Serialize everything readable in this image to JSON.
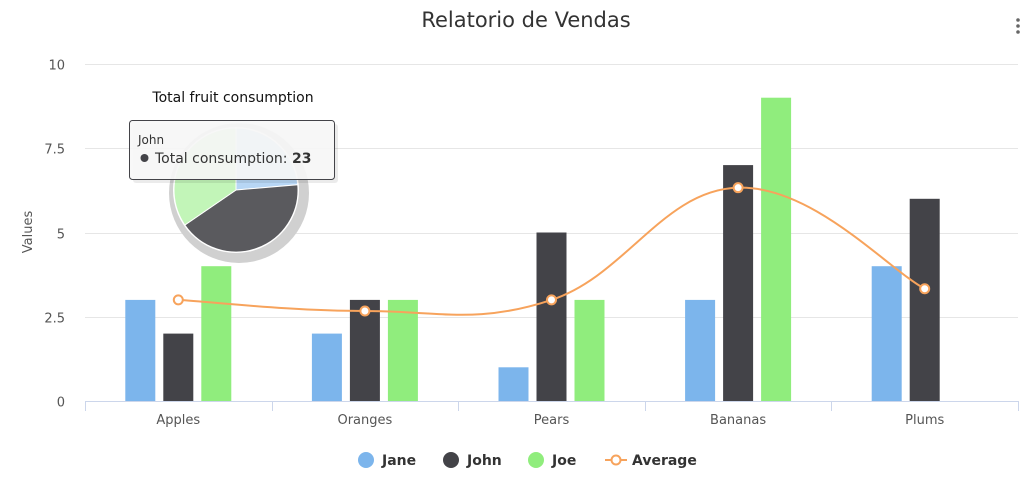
{
  "context_menu_icon": "vertical-ellipsis-icon",
  "chart_data": {
    "type": "bar",
    "title": "Relatorio de Vendas",
    "ylabel": "Values",
    "xlabel": "",
    "ylim": [
      0,
      10
    ],
    "yticks": [
      0,
      2.5,
      5,
      7.5,
      10
    ],
    "ytick_labels": [
      "0",
      "2.5",
      "5",
      "7.5",
      "10"
    ],
    "grid": true,
    "legend_position": "bottom",
    "categories": [
      "Apples",
      "Oranges",
      "Pears",
      "Bananas",
      "Plums"
    ],
    "series": [
      {
        "name": "Jane",
        "type": "bar",
        "color": "#7cb5ec",
        "values": [
          3,
          2,
          1,
          3,
          4
        ]
      },
      {
        "name": "John",
        "type": "bar",
        "color": "#434348",
        "values": [
          2,
          3,
          5,
          7,
          6
        ]
      },
      {
        "name": "Joe",
        "type": "bar",
        "color": "#90ed7d",
        "values": [
          4,
          3,
          3,
          9,
          0
        ]
      },
      {
        "name": "Average",
        "type": "spline",
        "color": "#f7a35c",
        "values": [
          3,
          2.67,
          3,
          6.33,
          3.33
        ]
      }
    ],
    "pie": {
      "title": "Total fruit consumption",
      "slices": [
        {
          "name": "Jane",
          "value": 13,
          "color": "#7cb5ec"
        },
        {
          "name": "John",
          "value": 23,
          "color": "#434348"
        },
        {
          "name": "Joe",
          "value": 19,
          "color": "#90ed7d"
        }
      ],
      "hovered": "John"
    },
    "tooltip": {
      "name": "John",
      "label": "Total consumption: ",
      "value": "23"
    }
  }
}
